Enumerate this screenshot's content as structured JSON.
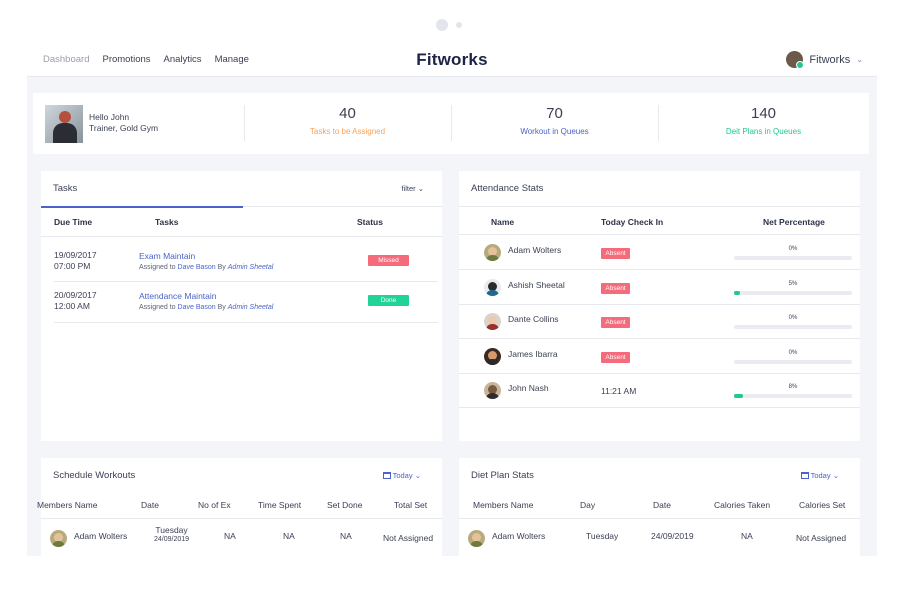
{
  "nav": {
    "items": [
      "Dashboard",
      "Promotions",
      "Analytics",
      "Manage"
    ]
  },
  "brand": "Fitworks",
  "user": {
    "name": "Fitworks"
  },
  "profile": {
    "greeting": "Hello John",
    "role": "Trainer, Gold Gym"
  },
  "stats": [
    {
      "value": "40",
      "label": "Tasks to be Assigned",
      "color": "#f5a25d"
    },
    {
      "value": "70",
      "label": "Workout in Queues",
      "color": "#4a63c9"
    },
    {
      "value": "140",
      "label": "Deit Plans in Queues",
      "color": "#22c98e"
    }
  ],
  "tasks": {
    "title": "Tasks",
    "filter": "filter",
    "headers": [
      "Due Time",
      "Tasks",
      "Status"
    ],
    "rows": [
      {
        "date": "19/09/2017",
        "time": "07:00 PM",
        "name": "Exam Maintain",
        "assigned_prefix": "Assigned to",
        "assignee": "Dave Bason",
        "by": "By",
        "admin": "Admin Sheetal",
        "status": "Missed"
      },
      {
        "date": "20/09/2017",
        "time": "12:00 AM",
        "name": "Attendance Maintain",
        "assigned_prefix": "Assigned to",
        "assignee": "Dave Bason",
        "by": "By",
        "admin": "Admin Sheetal",
        "status": "Done"
      }
    ]
  },
  "attendance": {
    "title": "Attendance Stats",
    "headers": [
      "Name",
      "Today Check In",
      "Net Percentage"
    ],
    "rows": [
      {
        "name": "Adam Wolters",
        "checkin": "Absent",
        "absent": true,
        "percent_label": "0%",
        "percent": 0
      },
      {
        "name": "Ashish Sheetal",
        "checkin": "Absent",
        "absent": true,
        "percent_label": "5%",
        "percent": 5
      },
      {
        "name": "Dante Collins",
        "checkin": "Absent",
        "absent": true,
        "percent_label": "0%",
        "percent": 0
      },
      {
        "name": "James Ibarra",
        "checkin": "Absent",
        "absent": true,
        "percent_label": "0%",
        "percent": 0
      },
      {
        "name": "John Nash",
        "checkin": "11:21 AM",
        "absent": false,
        "percent_label": "8%",
        "percent": 8
      }
    ]
  },
  "schedule": {
    "title": "Schedule Workouts",
    "today": "Today",
    "headers": [
      "Members Name",
      "Date",
      "No of Ex",
      "Time Spent",
      "Set Done",
      "Total Set"
    ],
    "rows": [
      {
        "name": "Adam Wolters",
        "day": "Tuesday",
        "date": "24/09/2019",
        "ex": "NA",
        "time": "NA",
        "done": "NA",
        "total": "Not Assigned"
      }
    ]
  },
  "diet": {
    "title": "Diet Plan Stats",
    "today": "Today",
    "headers": [
      "Members Name",
      "Day",
      "Date",
      "Calories Taken",
      "Calories Set"
    ],
    "rows": [
      {
        "name": "Adam Wolters",
        "day": "Tuesday",
        "date": "24/09/2019",
        "taken": "NA",
        "set": "Not Assigned"
      }
    ]
  }
}
